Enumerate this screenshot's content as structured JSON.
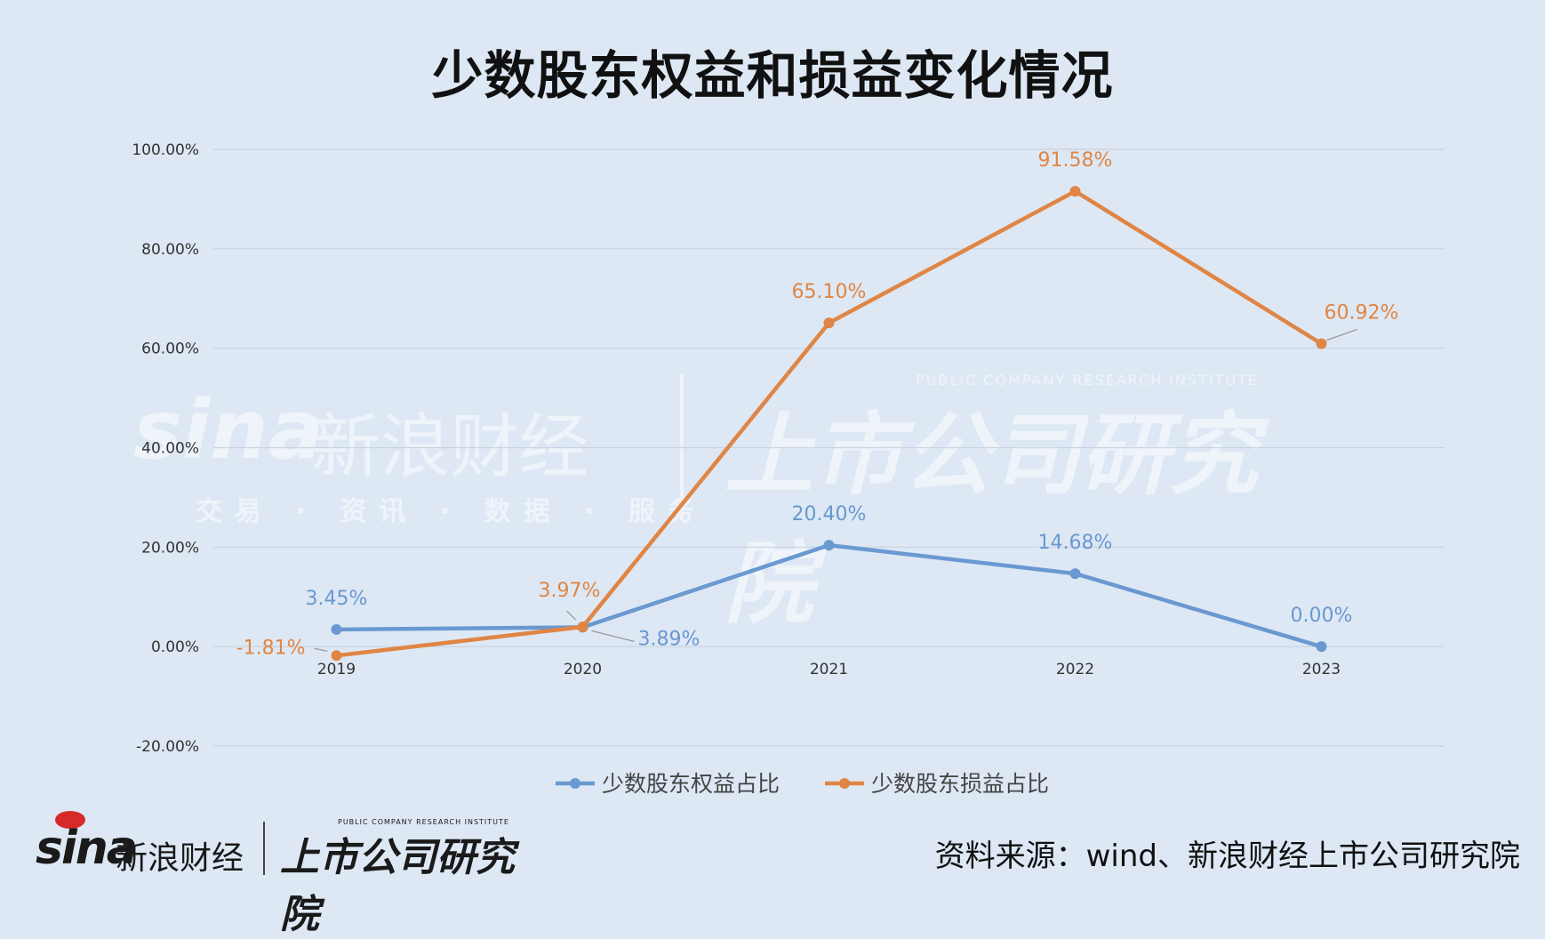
{
  "title": "少数股东权益和损益变化情况",
  "colors": {
    "background": "#dde8f4",
    "series_equity": "#6a98d0",
    "series_profit": "#e08544",
    "grid": "#c9d3df"
  },
  "watermark": {
    "sina_logo": "sina",
    "sina_cn": "新浪财经",
    "sina_sub": "交易 · 资讯 · 数据 · 服务",
    "institute": "上市公司研究院",
    "institute_en": "PUBLIC COMPANY RESEARCH INSTITUTE"
  },
  "footer": {
    "logo_sina": "sina",
    "logo_sina_cn": "新浪财经",
    "logo_institute": "上市公司研究院",
    "logo_institute_en": "PUBLIC COMPANY RESEARCH INSTITUTE",
    "source": "资料来源：wind、新浪财经上市公司研究院"
  },
  "chart_data": {
    "type": "line",
    "title": "少数股东权益和损益变化情况",
    "xlabel": "",
    "ylabel": "",
    "categories": [
      "2019",
      "2020",
      "2021",
      "2022",
      "2023"
    ],
    "yticks": [
      "-20.00%",
      "0.00%",
      "20.00%",
      "40.00%",
      "60.00%",
      "80.00%",
      "100.00%"
    ],
    "ylim": [
      -20,
      100
    ],
    "grid": true,
    "legend_position": "bottom",
    "series": [
      {
        "name": "少数股东权益占比",
        "color": "#6a98d0",
        "values": [
          3.45,
          3.89,
          20.4,
          14.68,
          0.0
        ],
        "labels": [
          "3.45%",
          "3.89%",
          "20.40%",
          "14.68%",
          "0.00%"
        ]
      },
      {
        "name": "少数股东损益占比",
        "color": "#e08544",
        "values": [
          -1.81,
          3.97,
          65.1,
          91.58,
          60.92
        ],
        "labels": [
          "-1.81%",
          "3.97%",
          "65.10%",
          "91.58%",
          "60.92%"
        ]
      }
    ]
  }
}
